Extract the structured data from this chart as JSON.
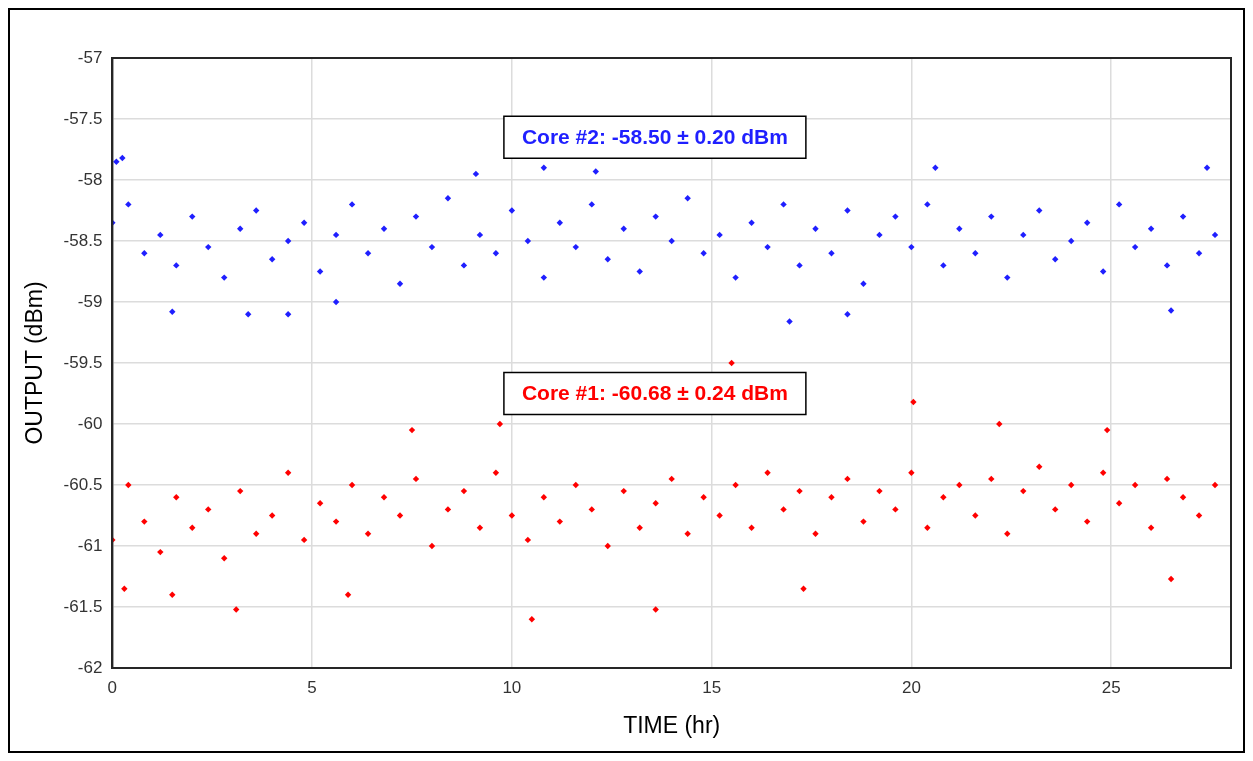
{
  "chart_data": {
    "type": "scatter",
    "xlabel": "TIME (hr)",
    "ylabel": "OUTPUT (dBm)",
    "xlim": [
      0,
      28
    ],
    "xticks": [
      0,
      5,
      10,
      15,
      20,
      25
    ],
    "ylim": [
      -62,
      -57
    ],
    "yticks": [
      -62,
      -61.5,
      -61,
      -60.5,
      -60,
      -59.5,
      -59,
      -58.5,
      -58,
      -57.5,
      -57
    ],
    "grid": true,
    "legend": false,
    "marker": "diamond",
    "annotations": [
      "Core #2: -58.50 ± 0.20 dBm",
      "Core #1: -60.68 ± 0.24 dBm"
    ],
    "series": [
      {
        "color": "#1f1fff",
        "x": [
          0,
          0.4,
          0.8,
          1.2,
          1.6,
          2,
          2.4,
          2.8,
          3.2,
          3.6,
          4,
          4.4,
          4.8,
          5.2,
          5.6,
          6,
          6.4,
          6.8,
          7.2,
          7.6,
          8,
          8.4,
          8.8,
          9.2,
          9.6,
          10,
          10.4,
          10.8,
          11.2,
          11.6,
          12,
          12.4,
          12.8,
          13.2,
          13.6,
          14,
          14.4,
          14.8,
          15.2,
          15.6,
          16,
          16.4,
          16.8,
          17.2,
          17.6,
          18,
          18.4,
          18.8,
          19.2,
          19.6,
          20,
          20.4,
          20.8,
          21.2,
          21.6,
          22,
          22.4,
          22.8,
          23.2,
          23.6,
          24,
          24.4,
          24.8,
          25.2,
          25.6,
          26,
          26.4,
          26.8,
          27.2,
          27.6,
          0.1,
          0.25,
          1.5,
          3.4,
          4.4,
          5.6,
          9.1,
          10.8,
          12.1,
          16.95,
          18.4,
          20.6,
          26.5,
          27.4
        ],
        "values": [
          -58.35,
          -58.2,
          -58.6,
          -58.45,
          -58.7,
          -58.3,
          -58.55,
          -58.8,
          -58.4,
          -58.25,
          -58.65,
          -58.5,
          -58.35,
          -58.75,
          -58.45,
          -58.2,
          -58.6,
          -58.4,
          -58.85,
          -58.3,
          -58.55,
          -58.15,
          -58.7,
          -58.45,
          -58.6,
          -58.25,
          -58.5,
          -58.8,
          -58.35,
          -58.55,
          -58.2,
          -58.65,
          -58.4,
          -58.75,
          -58.3,
          -58.5,
          -58.15,
          -58.6,
          -58.45,
          -58.8,
          -58.35,
          -58.55,
          -58.2,
          -58.7,
          -58.4,
          -58.6,
          -58.25,
          -58.85,
          -58.45,
          -58.3,
          -58.55,
          -58.2,
          -58.7,
          -58.4,
          -58.6,
          -58.3,
          -58.8,
          -58.45,
          -58.25,
          -58.65,
          -58.5,
          -58.35,
          -58.75,
          -58.2,
          -58.55,
          -58.4,
          -58.7,
          -58.3,
          -58.6,
          -58.45,
          -57.85,
          -57.82,
          -59.08,
          -59.1,
          -59.1,
          -59.0,
          -57.95,
          -57.9,
          -57.93,
          -59.16,
          -59.1,
          -57.9,
          -59.07,
          -57.9
        ]
      },
      {
        "color": "#ff0000",
        "x": [
          0,
          0.4,
          0.8,
          1.2,
          1.6,
          2,
          2.4,
          2.8,
          3.2,
          3.6,
          4,
          4.4,
          4.8,
          5.2,
          5.6,
          6,
          6.4,
          6.8,
          7.2,
          7.6,
          8,
          8.4,
          8.8,
          9.2,
          9.6,
          10,
          10.4,
          10.8,
          11.2,
          11.6,
          12,
          12.4,
          12.8,
          13.2,
          13.6,
          14,
          14.4,
          14.8,
          15.2,
          15.6,
          16,
          16.4,
          16.8,
          17.2,
          17.6,
          18,
          18.4,
          18.8,
          19.2,
          19.6,
          20,
          20.4,
          20.8,
          21.2,
          21.6,
          22,
          22.4,
          22.8,
          23.2,
          23.6,
          24,
          24.4,
          24.8,
          25.2,
          25.6,
          26,
          26.4,
          26.8,
          27.2,
          27.6,
          0.3,
          1.5,
          3.1,
          5.9,
          7.5,
          9.7,
          10.5,
          13.6,
          15.5,
          17.3,
          20.05,
          22.2,
          26.5,
          24.9
        ],
        "values": [
          -60.95,
          -60.5,
          -60.8,
          -61.05,
          -60.6,
          -60.85,
          -60.7,
          -61.1,
          -60.55,
          -60.9,
          -60.75,
          -60.4,
          -60.95,
          -60.65,
          -60.8,
          -60.5,
          -60.9,
          -60.6,
          -60.75,
          -60.45,
          -61.0,
          -60.7,
          -60.55,
          -60.85,
          -60.4,
          -60.75,
          -60.95,
          -60.6,
          -60.8,
          -60.5,
          -60.7,
          -61.0,
          -60.55,
          -60.85,
          -60.65,
          -60.45,
          -60.9,
          -60.6,
          -60.75,
          -60.5,
          -60.85,
          -60.4,
          -60.7,
          -60.55,
          -60.9,
          -60.6,
          -60.45,
          -60.8,
          -60.55,
          -60.7,
          -60.4,
          -60.85,
          -60.6,
          -60.5,
          -60.75,
          -60.45,
          -60.9,
          -60.55,
          -60.35,
          -60.7,
          -60.5,
          -60.8,
          -60.4,
          -60.65,
          -60.5,
          -60.85,
          -60.45,
          -60.6,
          -60.75,
          -60.5,
          -61.35,
          -61.4,
          -61.52,
          -61.4,
          -60.05,
          -60.0,
          -61.6,
          -61.52,
          -59.5,
          -61.35,
          -59.82,
          -60.0,
          -61.27,
          -60.05
        ]
      }
    ]
  }
}
